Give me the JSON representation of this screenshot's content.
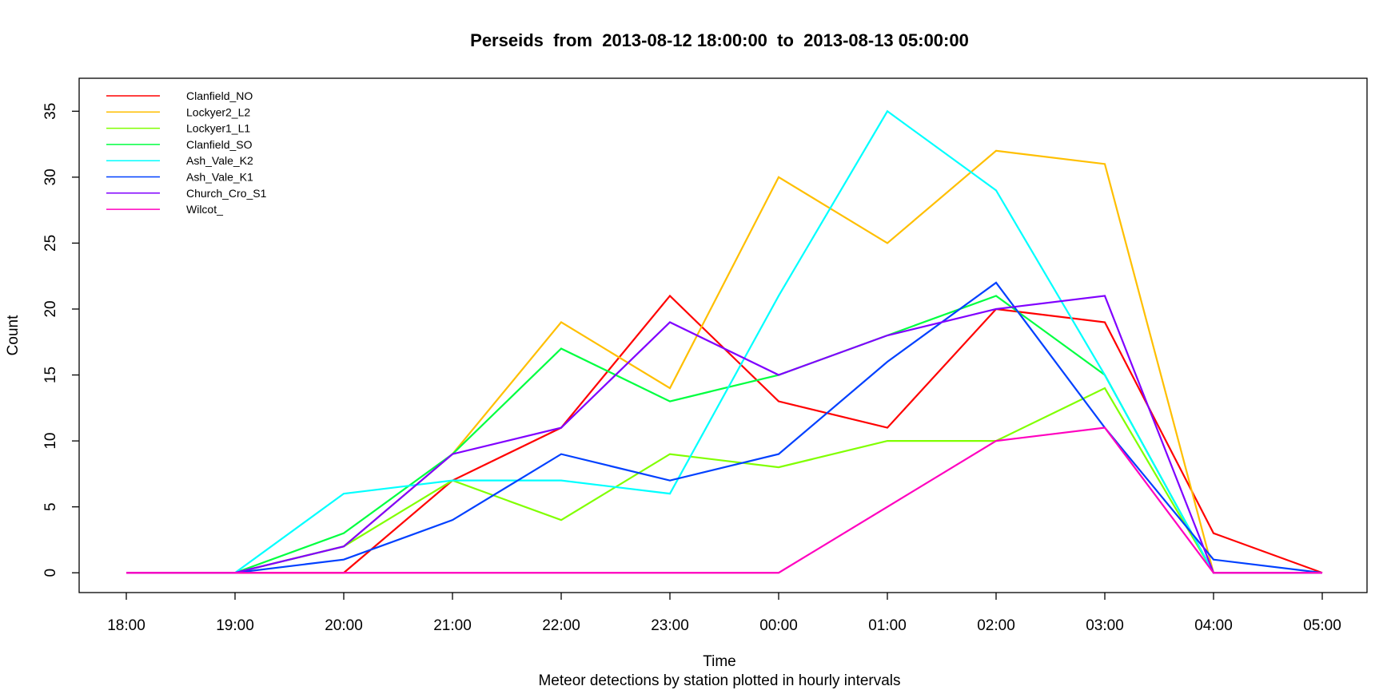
{
  "chart_data": {
    "type": "line",
    "title": "Perseids  from  2013-08-12 18:00:00  to  2013-08-13 05:00:00",
    "xlabel": "Time",
    "subtitle": "Meteor detections by station plotted in hourly intervals",
    "ylabel": "Count",
    "x": [
      "18:00",
      "19:00",
      "20:00",
      "21:00",
      "22:00",
      "23:00",
      "00:00",
      "01:00",
      "02:00",
      "03:00",
      "04:00",
      "05:00"
    ],
    "ylim": [
      -1.5,
      37.5
    ],
    "yticks": [
      0,
      5,
      10,
      15,
      20,
      25,
      30,
      35
    ],
    "grid": false,
    "legend_position": "top-left",
    "series": [
      {
        "name": "Clanfield_NO",
        "color": "#ff0000",
        "values": [
          0,
          0,
          0,
          7,
          11,
          21,
          13,
          11,
          20,
          19,
          3,
          0
        ]
      },
      {
        "name": "Lockyer2_L2",
        "color": "#ffbf00",
        "values": [
          0,
          0,
          2,
          9,
          19,
          14,
          30,
          25,
          32,
          31,
          0,
          0
        ]
      },
      {
        "name": "Lockyer1_L1",
        "color": "#80ff00",
        "values": [
          0,
          0,
          2,
          7,
          4,
          9,
          8,
          10,
          10,
          14,
          0,
          0
        ]
      },
      {
        "name": "Clanfield_SO",
        "color": "#00ff40",
        "values": [
          0,
          0,
          3,
          9,
          17,
          13,
          15,
          18,
          21,
          15,
          0,
          0
        ]
      },
      {
        "name": "Ash_Vale_K2",
        "color": "#00ffff",
        "values": [
          0,
          0,
          6,
          7,
          7,
          6,
          21,
          35,
          29,
          15,
          0,
          0
        ]
      },
      {
        "name": "Ash_Vale_K1",
        "color": "#0040ff",
        "values": [
          0,
          0,
          1,
          4,
          9,
          7,
          9,
          16,
          22,
          11,
          1,
          0
        ]
      },
      {
        "name": "Church_Cro_S1",
        "color": "#8000ff",
        "values": [
          0,
          0,
          2,
          9,
          11,
          19,
          15,
          18,
          20,
          21,
          0,
          0
        ]
      },
      {
        "name": "Wilcot_",
        "color": "#ff00bf",
        "values": [
          0,
          0,
          0,
          0,
          0,
          0,
          0,
          5,
          10,
          11,
          0,
          0
        ]
      }
    ]
  }
}
